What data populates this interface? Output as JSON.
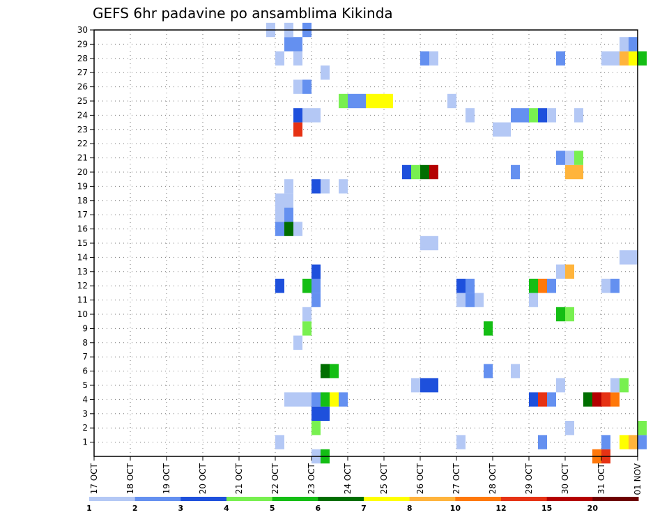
{
  "chart_data": {
    "type": "heatmap",
    "title": "GEFS 6hr padavine po ansamblima Kikinda",
    "x_ticks": [
      "17 OCT",
      "18 OCT",
      "19 OCT",
      "20 OCT",
      "21 OCT",
      "22 OCT",
      "23 OCT",
      "24 OCT",
      "25 OCT",
      "26 OCT",
      "27 OCT",
      "28 OCT",
      "29 OCT",
      "30 OCT",
      "31 OCT",
      "01 NOV"
    ],
    "y_ticks": [
      "1",
      "2",
      "3",
      "4",
      "5",
      "6",
      "7",
      "8",
      "9",
      "10",
      "11",
      "12",
      "13",
      "14",
      "15",
      "16",
      "17",
      "18",
      "19",
      "20",
      "21",
      "22",
      "23",
      "24",
      "25",
      "26",
      "27",
      "28",
      "29",
      "30"
    ],
    "xlim": [
      "17 OCT 00Z",
      "01 NOV 00Z"
    ],
    "ylim": [
      0,
      30
    ],
    "grid": true,
    "colorbar": {
      "labels": [
        "1",
        "2",
        "3",
        "4",
        "5",
        "6",
        "7",
        "8",
        "10",
        "12",
        "15",
        "20"
      ],
      "colors": [
        "#b4c8f5",
        "#6490f0",
        "#1e50dc",
        "#78f050",
        "#14be14",
        "#006e00",
        "#ffff00",
        "#ffb43c",
        "#ff780a",
        "#e63214",
        "#b40000",
        "#6e0000"
      ]
    },
    "cells": [
      {
        "x": "22 OCT 00Z",
        "y": 1,
        "c": 0
      },
      {
        "x": "23 OCT 00Z",
        "y": 0,
        "c": 0
      },
      {
        "x": "23 OCT 06Z",
        "y": 0,
        "c": 4
      },
      {
        "x": "23 OCT 00Z",
        "y": 2,
        "c": 3
      },
      {
        "x": "23 OCT 00Z",
        "y": 3,
        "c": 2
      },
      {
        "x": "23 OCT 06Z",
        "y": 3,
        "c": 2
      },
      {
        "x": "22 OCT 06Z",
        "y": 4,
        "c": 0
      },
      {
        "x": "22 OCT 12Z",
        "y": 4,
        "c": 0
      },
      {
        "x": "22 OCT 18Z",
        "y": 4,
        "c": 0
      },
      {
        "x": "23 OCT 00Z",
        "y": 4,
        "c": 1
      },
      {
        "x": "23 OCT 06Z",
        "y": 4,
        "c": 4
      },
      {
        "x": "23 OCT 12Z",
        "y": 4,
        "c": 6
      },
      {
        "x": "23 OCT 18Z",
        "y": 4,
        "c": 1
      },
      {
        "x": "23 OCT 06Z",
        "y": 6,
        "c": 5
      },
      {
        "x": "23 OCT 12Z",
        "y": 6,
        "c": 4
      },
      {
        "x": "22 OCT 12Z",
        "y": 8,
        "c": 0
      },
      {
        "x": "22 OCT 18Z",
        "y": 9,
        "c": 3
      },
      {
        "x": "22 OCT 18Z",
        "y": 10,
        "c": 0
      },
      {
        "x": "23 OCT 00Z",
        "y": 11,
        "c": 1
      },
      {
        "x": "22 OCT 00Z",
        "y": 12,
        "c": 2
      },
      {
        "x": "22 OCT 18Z",
        "y": 12,
        "c": 4
      },
      {
        "x": "23 OCT 00Z",
        "y": 12,
        "c": 1
      },
      {
        "x": "23 OCT 00Z",
        "y": 13,
        "c": 2
      },
      {
        "x": "22 OCT 00Z",
        "y": 16,
        "c": 1
      },
      {
        "x": "22 OCT 06Z",
        "y": 16,
        "c": 5
      },
      {
        "x": "22 OCT 12Z",
        "y": 16,
        "c": 0
      },
      {
        "x": "22 OCT 00Z",
        "y": 17,
        "c": 0
      },
      {
        "x": "22 OCT 06Z",
        "y": 17,
        "c": 1
      },
      {
        "x": "22 OCT 00Z",
        "y": 18,
        "c": 0
      },
      {
        "x": "22 OCT 06Z",
        "y": 18,
        "c": 0
      },
      {
        "x": "22 OCT 06Z",
        "y": 19,
        "c": 0
      },
      {
        "x": "23 OCT 00Z",
        "y": 19,
        "c": 2
      },
      {
        "x": "23 OCT 06Z",
        "y": 19,
        "c": 0
      },
      {
        "x": "23 OCT 18Z",
        "y": 19,
        "c": 0
      },
      {
        "x": "22 OCT 12Z",
        "y": 23,
        "c": 9
      },
      {
        "x": "22 OCT 12Z",
        "y": 24,
        "c": 2
      },
      {
        "x": "22 OCT 18Z",
        "y": 24,
        "c": 0
      },
      {
        "x": "23 OCT 00Z",
        "y": 24,
        "c": 0
      },
      {
        "x": "23 OCT 18Z",
        "y": 25,
        "c": 3
      },
      {
        "x": "24 OCT 00Z",
        "y": 25,
        "c": 1
      },
      {
        "x": "24 OCT 06Z",
        "y": 25,
        "c": 1
      },
      {
        "x": "24 OCT 12Z",
        "y": 25,
        "c": 6
      },
      {
        "x": "24 OCT 18Z",
        "y": 25,
        "c": 6
      },
      {
        "x": "25 OCT 00Z",
        "y": 25,
        "c": 6
      },
      {
        "x": "22 OCT 12Z",
        "y": 26,
        "c": 0
      },
      {
        "x": "22 OCT 18Z",
        "y": 26,
        "c": 1
      },
      {
        "x": "23 OCT 06Z",
        "y": 27,
        "c": 0
      },
      {
        "x": "22 OCT 00Z",
        "y": 28,
        "c": 0
      },
      {
        "x": "22 OCT 12Z",
        "y": 28,
        "c": 0
      },
      {
        "x": "22 OCT 06Z",
        "y": 29,
        "c": 1
      },
      {
        "x": "22 OCT 12Z",
        "y": 29,
        "c": 1
      },
      {
        "x": "21 OCT 18Z",
        "y": 30,
        "c": 0
      },
      {
        "x": "22 OCT 06Z",
        "y": 30,
        "c": 0
      },
      {
        "x": "22 OCT 18Z",
        "y": 30,
        "c": 1
      },
      {
        "x": "25 OCT 18Z",
        "y": 5,
        "c": 0
      },
      {
        "x": "26 OCT 00Z",
        "y": 5,
        "c": 2
      },
      {
        "x": "26 OCT 06Z",
        "y": 5,
        "c": 2
      },
      {
        "x": "26 OCT 00Z",
        "y": 15,
        "c": 0
      },
      {
        "x": "26 OCT 06Z",
        "y": 15,
        "c": 0
      },
      {
        "x": "25 OCT 12Z",
        "y": 20,
        "c": 2
      },
      {
        "x": "25 OCT 18Z",
        "y": 20,
        "c": 3
      },
      {
        "x": "26 OCT 00Z",
        "y": 20,
        "c": 5
      },
      {
        "x": "26 OCT 06Z",
        "y": 20,
        "c": 10
      },
      {
        "x": "26 OCT 00Z",
        "y": 28,
        "c": 1
      },
      {
        "x": "26 OCT 06Z",
        "y": 28,
        "c": 0
      },
      {
        "x": "26 OCT 18Z",
        "y": 25,
        "c": 0
      },
      {
        "x": "27 OCT 00Z",
        "y": 1,
        "c": 0
      },
      {
        "x": "27 OCT 18Z",
        "y": 6,
        "c": 1
      },
      {
        "x": "28 OCT 12Z",
        "y": 6,
        "c": 0
      },
      {
        "x": "27 OCT 18Z",
        "y": 9,
        "c": 4
      },
      {
        "x": "27 OCT 00Z",
        "y": 11,
        "c": 0
      },
      {
        "x": "27 OCT 06Z",
        "y": 11,
        "c": 1
      },
      {
        "x": "27 OCT 12Z",
        "y": 11,
        "c": 0
      },
      {
        "x": "27 OCT 00Z",
        "y": 12,
        "c": 2
      },
      {
        "x": "27 OCT 06Z",
        "y": 12,
        "c": 1
      },
      {
        "x": "27 OCT 06Z",
        "y": 24,
        "c": 0
      },
      {
        "x": "28 OCT 00Z",
        "y": 23,
        "c": 0
      },
      {
        "x": "28 OCT 06Z",
        "y": 23,
        "c": 0
      },
      {
        "x": "28 OCT 12Z",
        "y": 24,
        "c": 1
      },
      {
        "x": "28 OCT 18Z",
        "y": 24,
        "c": 1
      },
      {
        "x": "29 OCT 00Z",
        "y": 24,
        "c": 3
      },
      {
        "x": "29 OCT 06Z",
        "y": 24,
        "c": 2
      },
      {
        "x": "29 OCT 12Z",
        "y": 24,
        "c": 0
      },
      {
        "x": "28 OCT 12Z",
        "y": 20,
        "c": 1
      },
      {
        "x": "29 OCT 06Z",
        "y": 1,
        "c": 1
      },
      {
        "x": "29 OCT 00Z",
        "y": 4,
        "c": 2
      },
      {
        "x": "29 OCT 06Z",
        "y": 4,
        "c": 9
      },
      {
        "x": "29 OCT 12Z",
        "y": 4,
        "c": 1
      },
      {
        "x": "29 OCT 00Z",
        "y": 11,
        "c": 0
      },
      {
        "x": "29 OCT 00Z",
        "y": 12,
        "c": 4
      },
      {
        "x": "29 OCT 06Z",
        "y": 12,
        "c": 8
      },
      {
        "x": "29 OCT 12Z",
        "y": 12,
        "c": 1
      },
      {
        "x": "29 OCT 18Z",
        "y": 28,
        "c": 1
      },
      {
        "x": "30 OCT 00Z",
        "y": 2,
        "c": 0
      },
      {
        "x": "29 OCT 18Z",
        "y": 5,
        "c": 0
      },
      {
        "x": "29 OCT 18Z",
        "y": 10,
        "c": 4
      },
      {
        "x": "30 OCT 00Z",
        "y": 10,
        "c": 3
      },
      {
        "x": "29 OCT 18Z",
        "y": 13,
        "c": 0
      },
      {
        "x": "30 OCT 00Z",
        "y": 13,
        "c": 7
      },
      {
        "x": "30 OCT 00Z",
        "y": 20,
        "c": 7
      },
      {
        "x": "30 OCT 06Z",
        "y": 20,
        "c": 7
      },
      {
        "x": "29 OCT 18Z",
        "y": 21,
        "c": 1
      },
      {
        "x": "30 OCT 00Z",
        "y": 21,
        "c": 0
      },
      {
        "x": "30 OCT 06Z",
        "y": 21,
        "c": 3
      },
      {
        "x": "30 OCT 06Z",
        "y": 24,
        "c": 0
      },
      {
        "x": "30 OCT 18Z",
        "y": 0,
        "c": 8
      },
      {
        "x": "31 OCT 00Z",
        "y": 0,
        "c": 9
      },
      {
        "x": "31 OCT 00Z",
        "y": 1,
        "c": 1
      },
      {
        "x": "31 OCT 12Z",
        "y": 1,
        "c": 6
      },
      {
        "x": "31 OCT 18Z",
        "y": 1,
        "c": 7
      },
      {
        "x": "01 NOV 00Z",
        "y": 1,
        "c": 1
      },
      {
        "x": "01 NOV 00Z",
        "y": 2,
        "c": 3
      },
      {
        "x": "30 OCT 12Z",
        "y": 4,
        "c": 5
      },
      {
        "x": "30 OCT 18Z",
        "y": 4,
        "c": 10
      },
      {
        "x": "31 OCT 00Z",
        "y": 4,
        "c": 9
      },
      {
        "x": "31 OCT 06Z",
        "y": 4,
        "c": 8
      },
      {
        "x": "31 OCT 06Z",
        "y": 5,
        "c": 0
      },
      {
        "x": "31 OCT 12Z",
        "y": 5,
        "c": 3
      },
      {
        "x": "31 OCT 00Z",
        "y": 12,
        "c": 0
      },
      {
        "x": "31 OCT 06Z",
        "y": 12,
        "c": 1
      },
      {
        "x": "31 OCT 12Z",
        "y": 14,
        "c": 0
      },
      {
        "x": "31 OCT 18Z",
        "y": 14,
        "c": 0
      },
      {
        "x": "31 OCT 00Z",
        "y": 28,
        "c": 0
      },
      {
        "x": "31 OCT 06Z",
        "y": 28,
        "c": 0
      },
      {
        "x": "31 OCT 12Z",
        "y": 28,
        "c": 7
      },
      {
        "x": "31 OCT 18Z",
        "y": 28,
        "c": 6
      },
      {
        "x": "01 NOV 00Z",
        "y": 28,
        "c": 4
      },
      {
        "x": "31 OCT 12Z",
        "y": 29,
        "c": 0
      },
      {
        "x": "31 OCT 18Z",
        "y": 29,
        "c": 1
      }
    ]
  }
}
